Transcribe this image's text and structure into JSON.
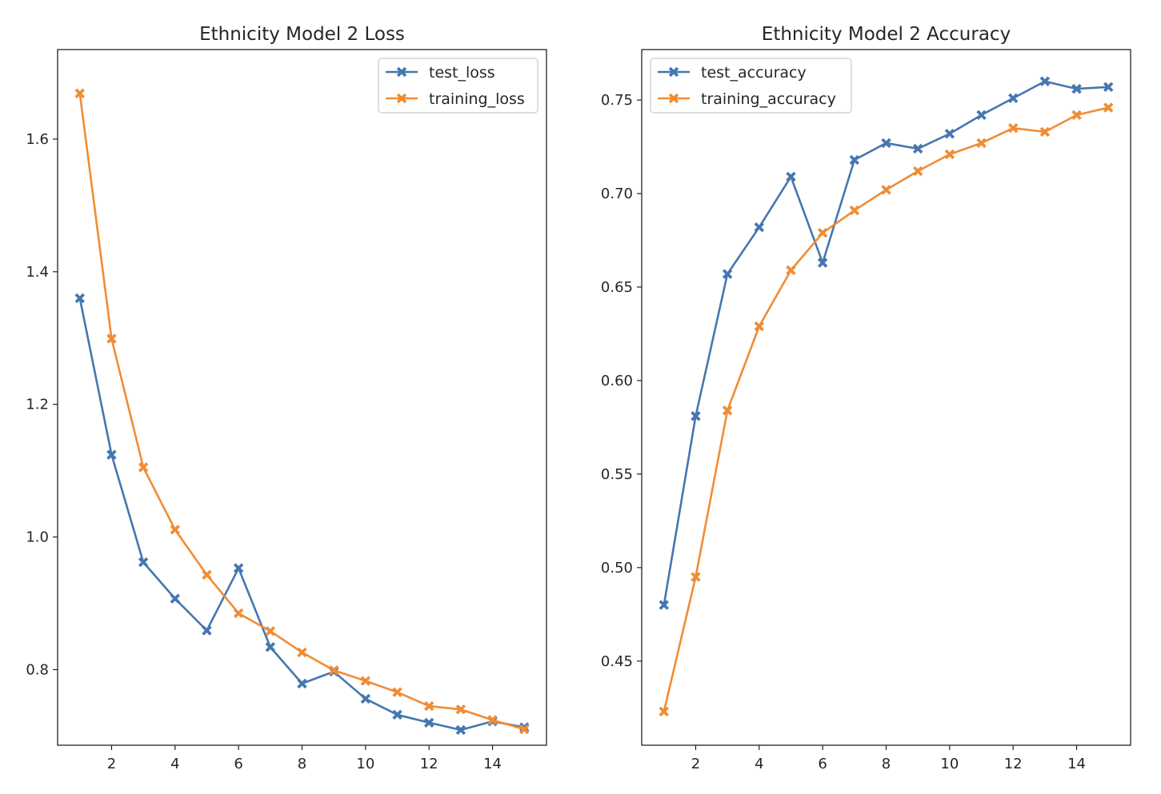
{
  "chart_data": [
    {
      "type": "line",
      "title": "Ethnicity Model 2 Loss",
      "xlabel": "",
      "ylabel": "",
      "x": [
        1,
        2,
        3,
        4,
        5,
        6,
        7,
        8,
        9,
        10,
        11,
        12,
        13,
        14,
        15
      ],
      "xlim": [
        0.3,
        15.7
      ],
      "ylim": [
        0.686,
        1.735
      ],
      "xticks": [
        2,
        4,
        6,
        8,
        10,
        12,
        14
      ],
      "yticks": [
        0.8,
        1.0,
        1.2,
        1.4,
        1.6
      ],
      "ytick_labels": [
        "0.8",
        "1.0",
        "1.2",
        "1.4",
        "1.6"
      ],
      "grid": false,
      "legend_position": "top-right",
      "series": [
        {
          "name": "test_loss",
          "color": "#4477b0",
          "marker": "X",
          "values": [
            1.36,
            1.124,
            0.962,
            0.907,
            0.859,
            0.953,
            0.834,
            0.779,
            0.797,
            0.756,
            0.732,
            0.72,
            0.709,
            0.722,
            0.713
          ]
        },
        {
          "name": "training_loss",
          "color": "#f08c35",
          "marker": "X",
          "values": [
            1.669,
            1.299,
            1.105,
            1.011,
            0.943,
            0.885,
            0.858,
            0.826,
            0.799,
            0.783,
            0.766,
            0.745,
            0.74,
            0.724,
            0.71
          ]
        }
      ]
    },
    {
      "type": "line",
      "title": "Ethnicity Model 2 Accuracy",
      "xlabel": "",
      "ylabel": "",
      "x": [
        1,
        2,
        3,
        4,
        5,
        6,
        7,
        8,
        9,
        10,
        11,
        12,
        13,
        14,
        15
      ],
      "xlim": [
        0.3,
        15.7
      ],
      "ylim": [
        0.405,
        0.777
      ],
      "xticks": [
        2,
        4,
        6,
        8,
        10,
        12,
        14
      ],
      "yticks": [
        0.45,
        0.5,
        0.55,
        0.6,
        0.65,
        0.7,
        0.75
      ],
      "ytick_labels": [
        "0.45",
        "0.50",
        "0.55",
        "0.60",
        "0.65",
        "0.70",
        "0.75"
      ],
      "grid": false,
      "legend_position": "top-left",
      "series": [
        {
          "name": "test_accuracy",
          "color": "#4477b0",
          "marker": "X",
          "values": [
            0.48,
            0.581,
            0.657,
            0.682,
            0.709,
            0.663,
            0.718,
            0.727,
            0.724,
            0.732,
            0.742,
            0.751,
            0.76,
            0.756,
            0.757
          ]
        },
        {
          "name": "training_accuracy",
          "color": "#f08c35",
          "marker": "X",
          "values": [
            0.423,
            0.495,
            0.584,
            0.629,
            0.659,
            0.679,
            0.691,
            0.702,
            0.712,
            0.721,
            0.727,
            0.735,
            0.733,
            0.742,
            0.746
          ]
        }
      ]
    }
  ]
}
